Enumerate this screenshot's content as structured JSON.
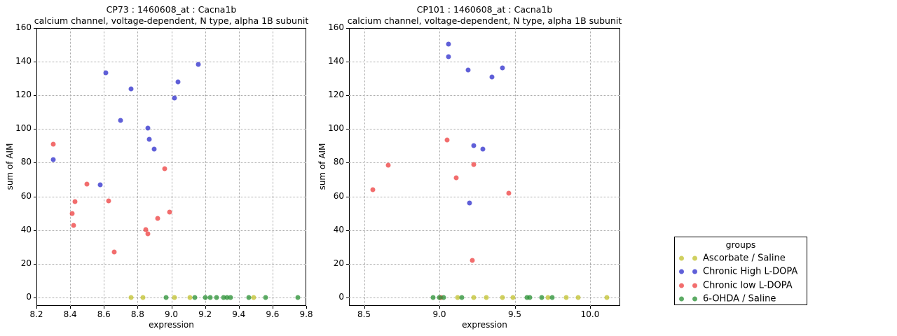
{
  "figure": {
    "background": "#ffffff",
    "axis_color": "#000000",
    "grid_color": "#a9a9a9"
  },
  "legend": {
    "title": "groups",
    "entries": [
      {
        "label": "Ascorbate / Saline",
        "color": "#c3c332"
      },
      {
        "label": "Chronic High L-DOPA",
        "color": "#3232cd"
      },
      {
        "label": "Chronic low L-DOPA",
        "color": "#ee4444"
      },
      {
        "label": "6-OHDA / Saline",
        "color": "#2e9338"
      }
    ]
  },
  "chart_data": [
    {
      "type": "scatter",
      "title": "CP73 : 1460608_at : Cacna1b",
      "subtitle": "calcium channel, voltage-dependent, N type, alpha 1B subunit",
      "xlabel": "expression",
      "ylabel": "sum of AIM",
      "xlim": [
        8.2,
        9.8
      ],
      "ylim": [
        -5,
        160
      ],
      "xticks": [
        8.2,
        8.4,
        8.6,
        8.8,
        9.0,
        9.2,
        9.4,
        9.6,
        9.8
      ],
      "yticks": [
        0,
        20,
        40,
        60,
        80,
        100,
        120,
        140,
        160
      ],
      "grid": true,
      "series": [
        {
          "name": "Ascorbate / Saline",
          "points": [
            [
              8.76,
              0
            ],
            [
              8.83,
              0
            ],
            [
              9.02,
              0
            ],
            [
              9.11,
              0
            ],
            [
              9.49,
              0
            ]
          ]
        },
        {
          "name": "Chronic High L-DOPA",
          "points": [
            [
              8.3,
              82
            ],
            [
              8.58,
              67
            ],
            [
              8.61,
              133.5
            ],
            [
              8.7,
              105
            ],
            [
              8.76,
              124
            ],
            [
              8.86,
              100.5
            ],
            [
              8.87,
              94
            ],
            [
              8.9,
              88
            ],
            [
              9.02,
              118.5
            ],
            [
              9.04,
              128
            ],
            [
              9.16,
              138.5
            ]
          ]
        },
        {
          "name": "Chronic low L-DOPA",
          "points": [
            [
              8.3,
              91
            ],
            [
              8.41,
              50
            ],
            [
              8.42,
              43
            ],
            [
              8.43,
              57
            ],
            [
              8.5,
              67.5
            ],
            [
              8.63,
              57.5
            ],
            [
              8.66,
              27
            ],
            [
              8.85,
              40.5
            ],
            [
              8.86,
              38
            ],
            [
              8.92,
              47
            ],
            [
              8.96,
              76.5
            ],
            [
              8.99,
              50.5
            ]
          ]
        },
        {
          "name": "6-OHDA / Saline",
          "points": [
            [
              8.97,
              0
            ],
            [
              9.14,
              0
            ],
            [
              9.2,
              0
            ],
            [
              9.23,
              0
            ],
            [
              9.27,
              0
            ],
            [
              9.31,
              0
            ],
            [
              9.33,
              0
            ],
            [
              9.35,
              0
            ],
            [
              9.46,
              0
            ],
            [
              9.56,
              0
            ],
            [
              9.75,
              0
            ]
          ]
        }
      ]
    },
    {
      "type": "scatter",
      "title": "CP101 : 1460608_at : Cacna1b",
      "subtitle": "calcium channel, voltage-dependent, N type, alpha 1B subunit",
      "xlabel": "expression",
      "ylabel": "sum of AIM",
      "xlim": [
        8.4,
        10.2
      ],
      "ylim": [
        -5,
        160
      ],
      "xticks": [
        8.5,
        9.0,
        9.5,
        10.0
      ],
      "yticks": [
        0,
        20,
        40,
        60,
        80,
        100,
        120,
        140,
        160
      ],
      "grid": true,
      "series": [
        {
          "name": "Ascorbate / Saline",
          "points": [
            [
              9.12,
              0
            ],
            [
              9.23,
              0
            ],
            [
              9.31,
              0
            ],
            [
              9.42,
              0
            ],
            [
              9.49,
              0
            ],
            [
              9.72,
              0
            ],
            [
              9.84,
              0
            ],
            [
              9.92,
              0
            ],
            [
              10.11,
              0
            ]
          ]
        },
        {
          "name": "Chronic High L-DOPA",
          "points": [
            [
              9.06,
              150.5
            ],
            [
              9.06,
              143
            ],
            [
              9.19,
              135
            ],
            [
              9.2,
              56
            ],
            [
              9.23,
              90
            ],
            [
              9.29,
              88
            ],
            [
              9.35,
              131
            ],
            [
              9.42,
              136.5
            ]
          ]
        },
        {
          "name": "Chronic low L-DOPA",
          "points": [
            [
              8.56,
              64
            ],
            [
              8.66,
              78.5
            ],
            [
              9.01,
              0
            ],
            [
              9.05,
              93.5
            ],
            [
              9.11,
              71
            ],
            [
              9.22,
              22
            ],
            [
              9.23,
              79
            ],
            [
              9.46,
              62
            ]
          ]
        },
        {
          "name": "6-OHDA / Saline",
          "points": [
            [
              8.96,
              0
            ],
            [
              9.0,
              0
            ],
            [
              9.03,
              0
            ],
            [
              9.15,
              0
            ],
            [
              9.58,
              0
            ],
            [
              9.6,
              0
            ],
            [
              9.68,
              0
            ],
            [
              9.75,
              0
            ]
          ]
        }
      ]
    }
  ]
}
